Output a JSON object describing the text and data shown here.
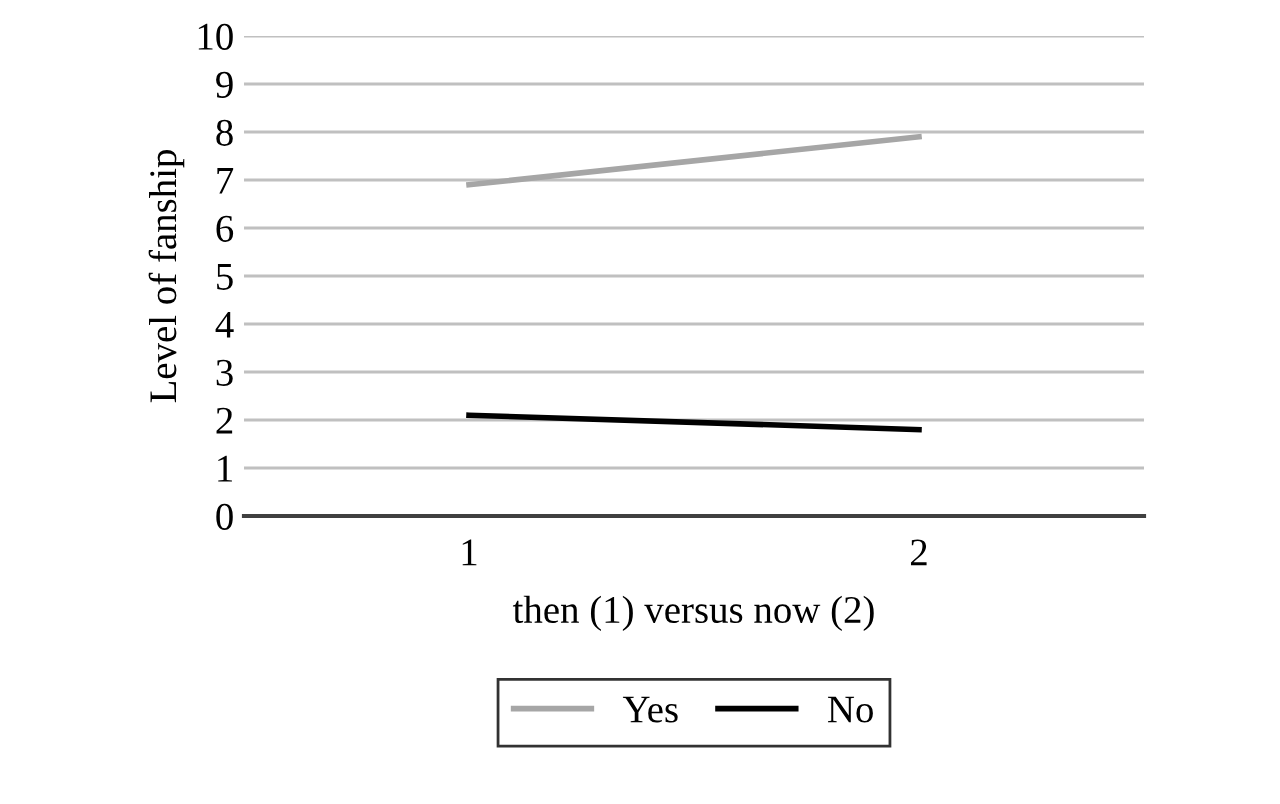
{
  "chart_data": {
    "type": "line",
    "xlabel": "then (1) versus now (2)",
    "ylabel": "Level of fanship",
    "categories": [
      "1",
      "2"
    ],
    "series": [
      {
        "name": "Yes",
        "color": "#a6a6a6",
        "values": [
          6.9,
          7.9
        ]
      },
      {
        "name": "No",
        "color": "#000000",
        "values": [
          2.1,
          1.8
        ]
      }
    ],
    "ylim": [
      0,
      10
    ],
    "yticks": [
      0,
      1,
      2,
      3,
      4,
      5,
      6,
      7,
      8,
      9,
      10
    ],
    "grid": "y",
    "legend": "bottom",
    "marker": "none",
    "line_style": "solid"
  }
}
